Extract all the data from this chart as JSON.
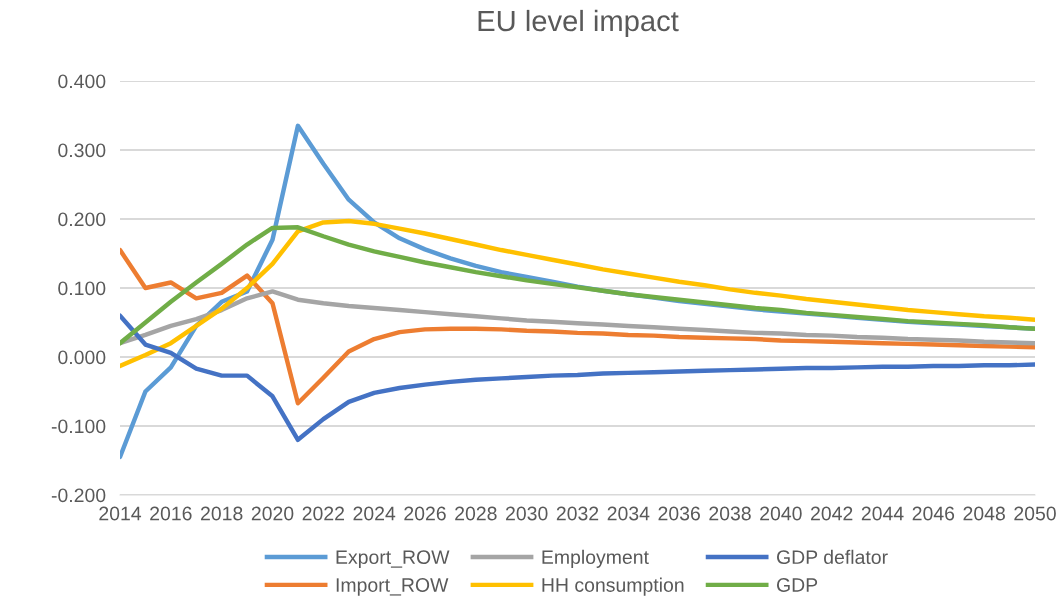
{
  "chart_data": {
    "type": "line",
    "title": "EU level impact",
    "x": [
      2014,
      2015,
      2016,
      2017,
      2018,
      2019,
      2020,
      2021,
      2022,
      2023,
      2024,
      2025,
      2026,
      2027,
      2028,
      2029,
      2030,
      2031,
      2032,
      2033,
      2034,
      2035,
      2036,
      2037,
      2038,
      2039,
      2040,
      2041,
      2042,
      2043,
      2044,
      2045,
      2046,
      2047,
      2048,
      2049,
      2050
    ],
    "xlim": [
      2014,
      2050
    ],
    "xticks": [
      2014,
      2016,
      2018,
      2020,
      2022,
      2024,
      2026,
      2028,
      2030,
      2032,
      2034,
      2036,
      2038,
      2040,
      2042,
      2044,
      2046,
      2048,
      2050
    ],
    "ylim": [
      -0.2,
      0.4
    ],
    "yticks": [
      {
        "value": -0.2,
        "label": "-0.200"
      },
      {
        "value": -0.1,
        "label": "-0.100"
      },
      {
        "value": 0,
        "label": "0.000"
      },
      {
        "value": 0.1,
        "label": "0.100"
      },
      {
        "value": 0.2,
        "label": "0.200"
      },
      {
        "value": 0.3,
        "label": "0.300"
      },
      {
        "value": 0.4,
        "label": "0.400"
      }
    ],
    "grid": "y",
    "legend": "bottom",
    "marker": "none",
    "line_style": "solid",
    "series": [
      {
        "name": "Export_ROW",
        "color": "#5b9bd5",
        "values": [
          -0.145,
          -0.05,
          -0.015,
          0.045,
          0.08,
          0.095,
          0.17,
          0.335,
          0.28,
          0.228,
          0.195,
          0.172,
          0.156,
          0.143,
          0.132,
          0.123,
          0.116,
          0.109,
          0.102,
          0.096,
          0.091,
          0.086,
          0.081,
          0.077,
          0.073,
          0.069,
          0.066,
          0.063,
          0.06,
          0.057,
          0.054,
          0.051,
          0.049,
          0.047,
          0.045,
          0.043,
          0.041
        ]
      },
      {
        "name": "Import_ROW",
        "color": "#ed7d31",
        "values": [
          0.155,
          0.1,
          0.108,
          0.085,
          0.093,
          0.118,
          0.078,
          -0.067,
          -0.03,
          0.008,
          0.026,
          0.036,
          0.04,
          0.041,
          0.041,
          0.04,
          0.038,
          0.037,
          0.035,
          0.034,
          0.032,
          0.031,
          0.029,
          0.028,
          0.027,
          0.026,
          0.024,
          0.023,
          0.022,
          0.021,
          0.02,
          0.019,
          0.018,
          0.017,
          0.016,
          0.015,
          0.014
        ]
      },
      {
        "name": "Employment",
        "color": "#a5a5a5",
        "values": [
          0.02,
          0.032,
          0.045,
          0.055,
          0.068,
          0.085,
          0.095,
          0.083,
          0.078,
          0.074,
          0.071,
          0.068,
          0.065,
          0.062,
          0.059,
          0.056,
          0.053,
          0.051,
          0.049,
          0.047,
          0.045,
          0.043,
          0.041,
          0.039,
          0.037,
          0.035,
          0.034,
          0.032,
          0.031,
          0.029,
          0.028,
          0.026,
          0.025,
          0.024,
          0.022,
          0.021,
          0.02
        ]
      },
      {
        "name": "HH consumption",
        "color": "#ffc000",
        "values": [
          -0.013,
          0.003,
          0.02,
          0.045,
          0.07,
          0.1,
          0.135,
          0.182,
          0.195,
          0.197,
          0.193,
          0.186,
          0.179,
          0.171,
          0.163,
          0.155,
          0.148,
          0.141,
          0.134,
          0.127,
          0.121,
          0.115,
          0.109,
          0.104,
          0.098,
          0.093,
          0.089,
          0.084,
          0.08,
          0.076,
          0.072,
          0.068,
          0.065,
          0.062,
          0.059,
          0.057,
          0.054
        ]
      },
      {
        "name": "GDP deflator",
        "color": "#4472c4",
        "values": [
          0.06,
          0.018,
          0.006,
          -0.017,
          -0.027,
          -0.027,
          -0.057,
          -0.12,
          -0.09,
          -0.065,
          -0.052,
          -0.045,
          -0.04,
          -0.036,
          -0.033,
          -0.031,
          -0.029,
          -0.027,
          -0.026,
          -0.024,
          -0.023,
          -0.022,
          -0.021,
          -0.02,
          -0.019,
          -0.018,
          -0.017,
          -0.016,
          -0.016,
          -0.015,
          -0.014,
          -0.014,
          -0.013,
          -0.013,
          -0.012,
          -0.012,
          -0.011
        ]
      },
      {
        "name": "GDP",
        "color": "#70ad47",
        "values": [
          0.02,
          0.05,
          0.08,
          0.108,
          0.135,
          0.163,
          0.187,
          0.188,
          0.175,
          0.163,
          0.153,
          0.145,
          0.137,
          0.13,
          0.123,
          0.117,
          0.111,
          0.106,
          0.101,
          0.096,
          0.091,
          0.087,
          0.083,
          0.079,
          0.075,
          0.071,
          0.068,
          0.064,
          0.061,
          0.058,
          0.055,
          0.052,
          0.05,
          0.048,
          0.046,
          0.043,
          0.041
        ]
      }
    ]
  }
}
